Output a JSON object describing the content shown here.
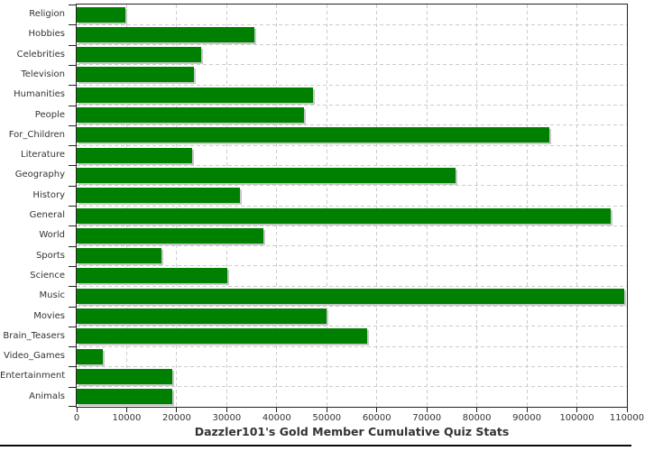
{
  "chart_data": {
    "type": "bar",
    "orientation": "horizontal",
    "title": "Dazzler101's Gold Member Cumulative Quiz Stats",
    "categories": [
      "Religion",
      "Hobbies",
      "Celebrities",
      "Television",
      "Humanities",
      "People",
      "For_Children",
      "Literature",
      "Geography",
      "History",
      "General",
      "World",
      "Sports",
      "Science",
      "Music",
      "Movies",
      "Brain_Teasers",
      "Video_Games",
      "Entertainment",
      "Animals"
    ],
    "values": [
      9800,
      35500,
      24900,
      23400,
      47300,
      45500,
      94500,
      23100,
      75800,
      32600,
      106800,
      37400,
      17000,
      30100,
      109400,
      50000,
      58000,
      5200,
      19200,
      19200
    ],
    "xlabel": "",
    "ylabel": "",
    "xlim": [
      0,
      110000
    ],
    "x_tick_interval": 10000,
    "x_tick_labels": [
      "0",
      "10000",
      "20000",
      "30000",
      "40000",
      "50000",
      "60000",
      "70000",
      "80000",
      "90000",
      "100000",
      "110000"
    ],
    "grid": "dashed-both-axes",
    "legend": "none",
    "colors": {
      "bar": "#008000",
      "bar_shadow": "#c8c8c8",
      "gridline": "#cccccc",
      "axis": "#222222",
      "text": "#333333"
    }
  }
}
